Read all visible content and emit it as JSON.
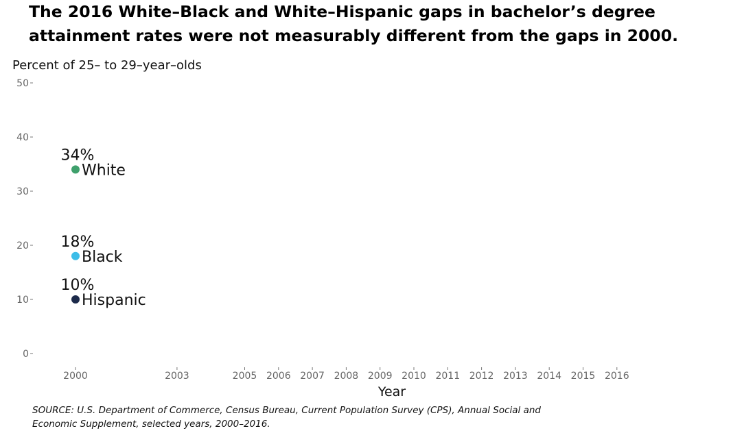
{
  "headline": "The 2016 White–Black and White–Hispanic gaps in bachelor’s degree attainment rates were not measurably different from the gaps in 2000.",
  "source": "SOURCE: U.S. Department of Commerce, Census Bureau, Current Population Survey (CPS), Annual Social and Economic Supplement, selected years, 2000–2016.",
  "chart_data": {
    "type": "line",
    "title": "",
    "xlabel": "Year",
    "ylabel": "Percent of 25– to 29–year–olds",
    "x": [
      2000,
      2003,
      2005,
      2006,
      2007,
      2008,
      2009,
      2010,
      2011,
      2012,
      2013,
      2014,
      2015,
      2016
    ],
    "ylim": [
      0,
      50
    ],
    "yticks": [
      0,
      10,
      20,
      30,
      40,
      50
    ],
    "grid": false,
    "series": [
      {
        "name": "White",
        "color": "#3fa06c",
        "points": [
          {
            "x": 2000,
            "y": 34,
            "label": "34%"
          }
        ]
      },
      {
        "name": "Black",
        "color": "#3dbde8",
        "points": [
          {
            "x": 2000,
            "y": 18,
            "label": "18%"
          }
        ]
      },
      {
        "name": "Hispanic",
        "color": "#1c2a4a",
        "points": [
          {
            "x": 2000,
            "y": 10,
            "label": "10%"
          }
        ]
      }
    ]
  }
}
